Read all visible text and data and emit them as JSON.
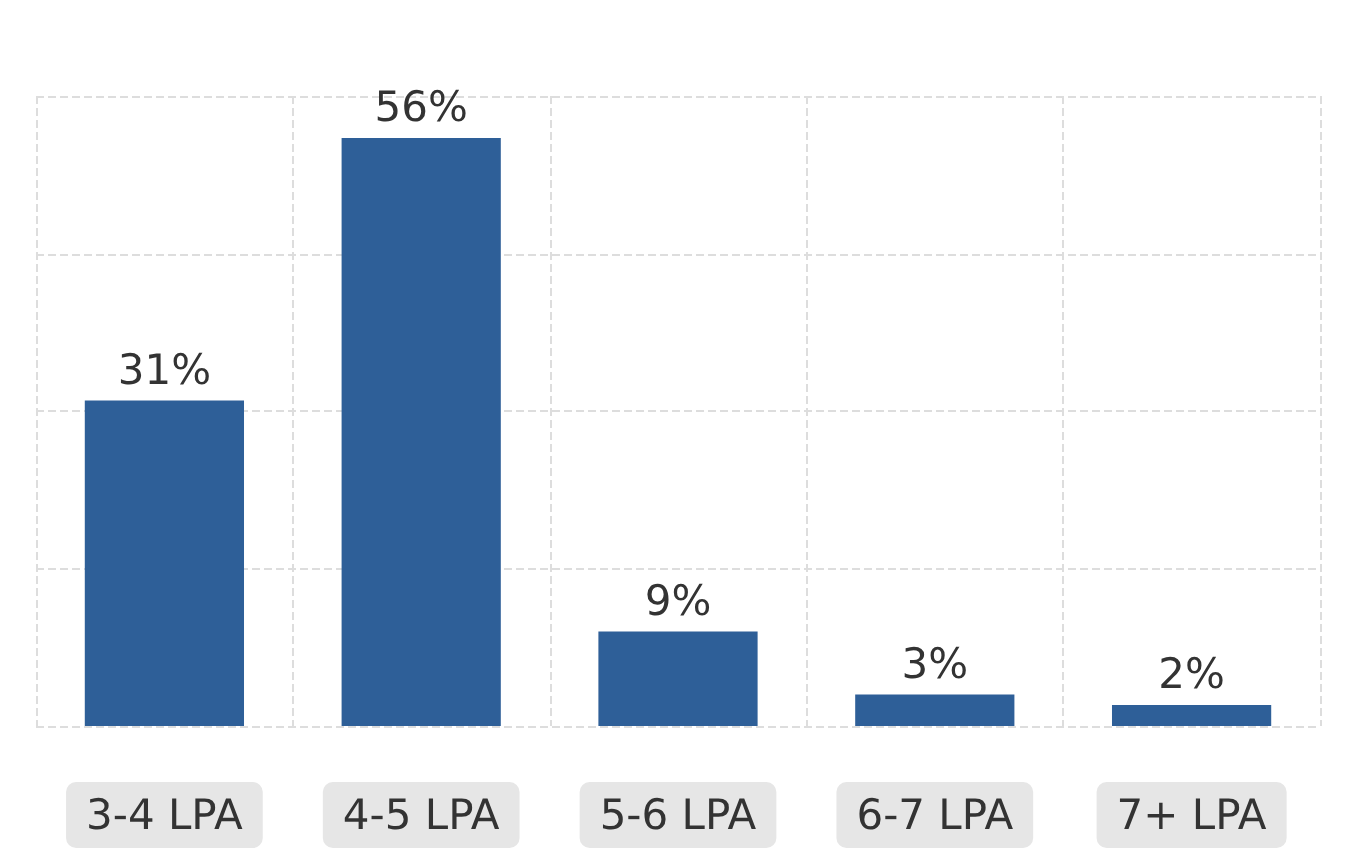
{
  "chart_data": {
    "type": "bar",
    "categories": [
      "3-4 LPA",
      "4-5 LPA",
      "5-6 LPA",
      "6-7 LPA",
      "7+ LPA"
    ],
    "values": [
      31,
      56,
      9,
      3,
      2
    ],
    "value_labels": [
      "31%",
      "56%",
      "9%",
      "3%",
      "2%"
    ],
    "color": "#2e5f98",
    "ylim": [
      0,
      60
    ],
    "yticks": [
      {
        "value": 0,
        "label": null
      },
      {
        "value": 15,
        "label": null
      },
      {
        "value": 30,
        "label": null
      },
      {
        "value": 45,
        "label": null
      },
      {
        "value": 60,
        "label": null
      }
    ],
    "grid": true,
    "tick_labels": "x"
  }
}
